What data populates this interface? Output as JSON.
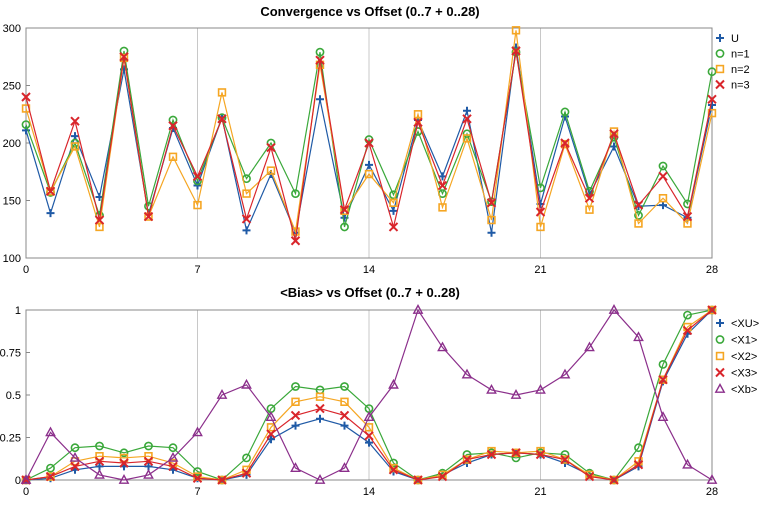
{
  "chart_data": [
    {
      "type": "line",
      "title": "Convergence vs Offset (0..7 + 0..28)",
      "xlabel": "",
      "ylabel": "",
      "xlim": [
        0,
        28
      ],
      "ylim": [
        100,
        300
      ],
      "xticks": [
        0,
        7,
        14,
        21,
        28
      ],
      "yticks": [
        100,
        150,
        200,
        250,
        300
      ],
      "grid": "vertical",
      "legend_position": "top-right",
      "x": [
        0,
        1,
        2,
        3,
        4,
        5,
        6,
        7,
        8,
        9,
        10,
        11,
        12,
        13,
        14,
        15,
        16,
        17,
        18,
        19,
        20,
        21,
        22,
        23,
        24,
        25,
        26,
        27,
        28
      ],
      "series": [
        {
          "name": "U",
          "marker": "plus",
          "color": "#1f5aa6",
          "values": [
            211,
            139,
            206,
            153,
            264,
            138,
            213,
            163,
            222,
            124,
            173,
            122,
            238,
            135,
            181,
            141,
            220,
            171,
            228,
            122,
            283,
            147,
            223,
            155,
            197,
            145,
            146,
            135,
            233
          ]
        },
        {
          "name": "n=1",
          "marker": "circle",
          "color": "#3aa83a",
          "values": [
            216,
            157,
            200,
            137,
            280,
            145,
            220,
            167,
            222,
            169,
            200,
            156,
            279,
            127,
            203,
            155,
            210,
            156,
            208,
            149,
            279,
            161,
            227,
            158,
            205,
            137,
            180,
            147,
            262
          ]
        },
        {
          "name": "n=2",
          "marker": "square",
          "color": "#f5a623",
          "values": [
            230,
            158,
            197,
            127,
            274,
            136,
            188,
            146,
            244,
            156,
            176,
            123,
            268,
            141,
            173,
            148,
            225,
            144,
            204,
            133,
            298,
            127,
            199,
            142,
            210,
            130,
            152,
            130,
            226
          ]
        },
        {
          "name": "n=3",
          "marker": "x",
          "color": "#d9252b",
          "values": [
            240,
            158,
            219,
            133,
            275,
            136,
            215,
            171,
            221,
            134,
            196,
            115,
            272,
            142,
            200,
            127,
            218,
            163,
            221,
            148,
            280,
            140,
            200,
            152,
            208,
            146,
            171,
            136,
            238
          ]
        }
      ]
    },
    {
      "type": "line",
      "title": "<Bias> vs Offset (0..7 + 0..28)",
      "xlabel": "",
      "ylabel": "",
      "xlim": [
        0,
        28
      ],
      "ylim": [
        0,
        1
      ],
      "xticks": [
        0,
        7,
        14,
        21,
        28
      ],
      "yticks": [
        0,
        0.25,
        0.5,
        0.75,
        1
      ],
      "ytick_labels": [
        "0",
        "0.25",
        "0.5",
        "0.75",
        "1"
      ],
      "grid": "vertical",
      "legend_position": "top-right",
      "x": [
        0,
        1,
        2,
        3,
        4,
        5,
        6,
        7,
        8,
        9,
        10,
        11,
        12,
        13,
        14,
        15,
        16,
        17,
        18,
        19,
        20,
        21,
        22,
        23,
        24,
        25,
        26,
        27,
        28
      ],
      "series": [
        {
          "name": "<XU>",
          "marker": "plus",
          "color": "#1f5aa6",
          "values": [
            0,
            0.01,
            0.06,
            0.08,
            0.08,
            0.08,
            0.06,
            0.01,
            0,
            0.03,
            0.24,
            0.32,
            0.36,
            0.32,
            0.22,
            0.05,
            0,
            0.03,
            0.1,
            0.15,
            0.16,
            0.15,
            0.1,
            0.03,
            0,
            0.08,
            0.58,
            0.86,
            1
          ]
        },
        {
          "name": "<X1>",
          "marker": "circle",
          "color": "#3aa83a",
          "values": [
            0,
            0.07,
            0.19,
            0.2,
            0.16,
            0.2,
            0.19,
            0.05,
            0,
            0.13,
            0.42,
            0.55,
            0.53,
            0.55,
            0.42,
            0.1,
            0,
            0.04,
            0.15,
            0.16,
            0.13,
            0.16,
            0.15,
            0.04,
            0,
            0.19,
            0.68,
            0.97,
            1
          ]
        },
        {
          "name": "<X2>",
          "marker": "square",
          "color": "#f5a623",
          "values": [
            0,
            0.02,
            0.11,
            0.14,
            0.13,
            0.14,
            0.1,
            0.02,
            0,
            0.06,
            0.31,
            0.46,
            0.49,
            0.46,
            0.31,
            0.07,
            0,
            0.03,
            0.12,
            0.17,
            0.16,
            0.17,
            0.12,
            0.03,
            0,
            0.11,
            0.59,
            0.9,
            1
          ]
        },
        {
          "name": "<X3>",
          "marker": "x",
          "color": "#d9252b",
          "values": [
            0,
            0.02,
            0.08,
            0.11,
            0.1,
            0.11,
            0.08,
            0.01,
            0,
            0.04,
            0.27,
            0.38,
            0.42,
            0.38,
            0.26,
            0.06,
            0,
            0.02,
            0.12,
            0.15,
            0.16,
            0.15,
            0.12,
            0.02,
            0,
            0.09,
            0.59,
            0.88,
            1
          ]
        },
        {
          "name": "<Xb>",
          "marker": "triangle",
          "color": "#8b2f8b",
          "values": [
            0,
            0.28,
            0.13,
            0.03,
            0,
            0.03,
            0.13,
            0.28,
            0.5,
            0.56,
            0.37,
            0.07,
            0,
            0.07,
            0.37,
            0.56,
            1,
            0.78,
            0.62,
            0.53,
            0.5,
            0.53,
            0.62,
            0.78,
            1,
            0.84,
            0.37,
            0.09,
            0
          ]
        }
      ]
    }
  ]
}
